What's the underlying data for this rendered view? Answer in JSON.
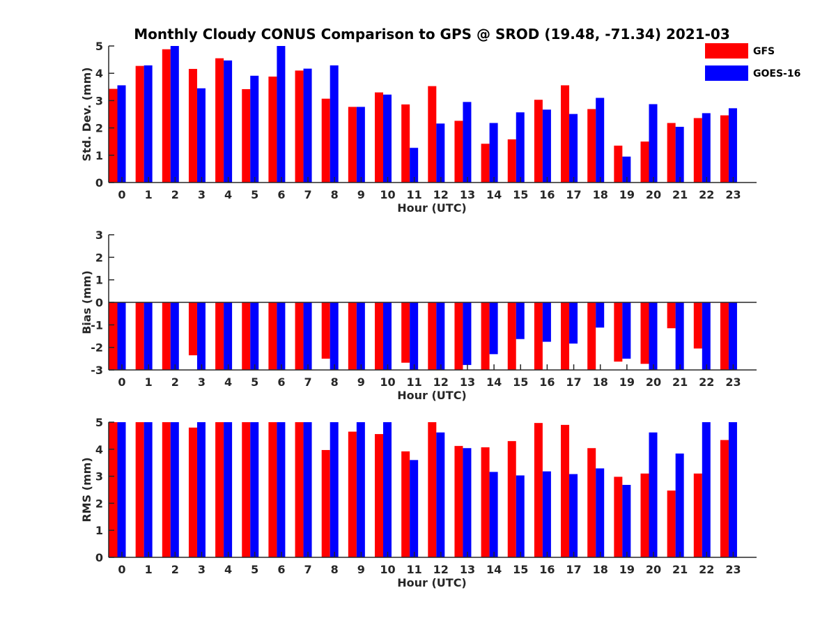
{
  "title": "Monthly Cloudy CONUS Comparison to GPS @ SROD (19.48, -71.34) 2021-03",
  "chart_data": [
    {
      "type": "bar",
      "name": "std",
      "categories": [
        "0",
        "1",
        "2",
        "3",
        "4",
        "5",
        "6",
        "7",
        "8",
        "9",
        "10",
        "11",
        "12",
        "13",
        "14",
        "15",
        "16",
        "17",
        "18",
        "19",
        "20",
        "21",
        "22",
        "23"
      ],
      "xlabel": "Hour (UTC)",
      "ylabel": "Std. Dev. (mm)",
      "ylim": [
        0,
        5
      ],
      "yticks": [
        "0",
        "1",
        "2",
        "3",
        "4",
        "5"
      ],
      "series": [
        {
          "name": "GFS",
          "color": "#ff0000",
          "values": [
            3.43,
            4.27,
            4.88,
            4.16,
            4.55,
            3.42,
            3.88,
            4.1,
            3.07,
            2.77,
            3.3,
            2.86,
            3.53,
            2.26,
            1.42,
            1.58,
            3.03,
            3.56,
            2.69,
            1.35,
            1.5,
            2.18,
            2.36,
            2.46
          ]
        },
        {
          "name": "GOES-16",
          "color": "#0000ff",
          "values": [
            3.56,
            4.29,
            5.0,
            3.45,
            4.47,
            3.91,
            5.0,
            4.17,
            4.29,
            2.77,
            3.22,
            1.27,
            2.16,
            2.95,
            2.18,
            2.57,
            2.67,
            2.51,
            3.1,
            0.95,
            2.87,
            2.04,
            2.54,
            2.72
          ]
        }
      ],
      "legend": "top-right"
    },
    {
      "type": "bar",
      "name": "bias",
      "categories": [
        "0",
        "1",
        "2",
        "3",
        "4",
        "5",
        "6",
        "7",
        "8",
        "9",
        "10",
        "11",
        "12",
        "13",
        "14",
        "15",
        "16",
        "17",
        "18",
        "19",
        "20",
        "21",
        "22",
        "23"
      ],
      "xlabel": "Hour (UTC)",
      "ylabel": "Bias (mm)",
      "ylim": [
        -3,
        3
      ],
      "yticks": [
        "-3",
        "-2",
        "-1",
        "0",
        "1",
        "2",
        "3"
      ],
      "series": [
        {
          "name": "GFS",
          "color": "#ff0000",
          "values": [
            -3,
            -3,
            -3,
            -2.35,
            -3,
            -3,
            -3,
            -3,
            -2.5,
            -3,
            -3,
            -2.68,
            -3,
            -3,
            -3,
            -3,
            -3,
            -3,
            -3,
            -2.63,
            -2.73,
            -1.15,
            -2.05,
            -3
          ]
        },
        {
          "name": "GOES-16",
          "color": "#0000ff",
          "values": [
            -3,
            -3,
            -3,
            -3,
            -3,
            -3,
            -3,
            -3,
            -3,
            -3,
            -3,
            -3,
            -3,
            -2.78,
            -2.3,
            -1.63,
            -1.75,
            -1.83,
            -1.12,
            -2.5,
            -3,
            -3,
            -3,
            -3
          ]
        }
      ]
    },
    {
      "type": "bar",
      "name": "rms",
      "categories": [
        "0",
        "1",
        "2",
        "3",
        "4",
        "5",
        "6",
        "7",
        "8",
        "9",
        "10",
        "11",
        "12",
        "13",
        "14",
        "15",
        "16",
        "17",
        "18",
        "19",
        "20",
        "21",
        "22",
        "23"
      ],
      "xlabel": "Hour (UTC)",
      "ylabel": "RMS (mm)",
      "ylim": [
        0,
        5
      ],
      "yticks": [
        "0",
        "1",
        "2",
        "3",
        "4",
        "5"
      ],
      "series": [
        {
          "name": "GFS",
          "color": "#ff0000",
          "values": [
            5,
            5,
            5,
            4.8,
            5,
            5,
            5,
            5,
            3.97,
            4.65,
            4.56,
            3.92,
            5,
            4.12,
            4.07,
            4.3,
            4.97,
            4.9,
            4.04,
            2.98,
            3.1,
            2.47,
            3.1,
            4.34
          ]
        },
        {
          "name": "GOES-16",
          "color": "#0000ff",
          "values": [
            5,
            5,
            5,
            5,
            5,
            5,
            5,
            5,
            5,
            5,
            5,
            3.6,
            4.62,
            4.04,
            3.16,
            3.03,
            3.18,
            3.08,
            3.29,
            2.68,
            4.62,
            3.84,
            5,
            5
          ]
        }
      ]
    }
  ]
}
